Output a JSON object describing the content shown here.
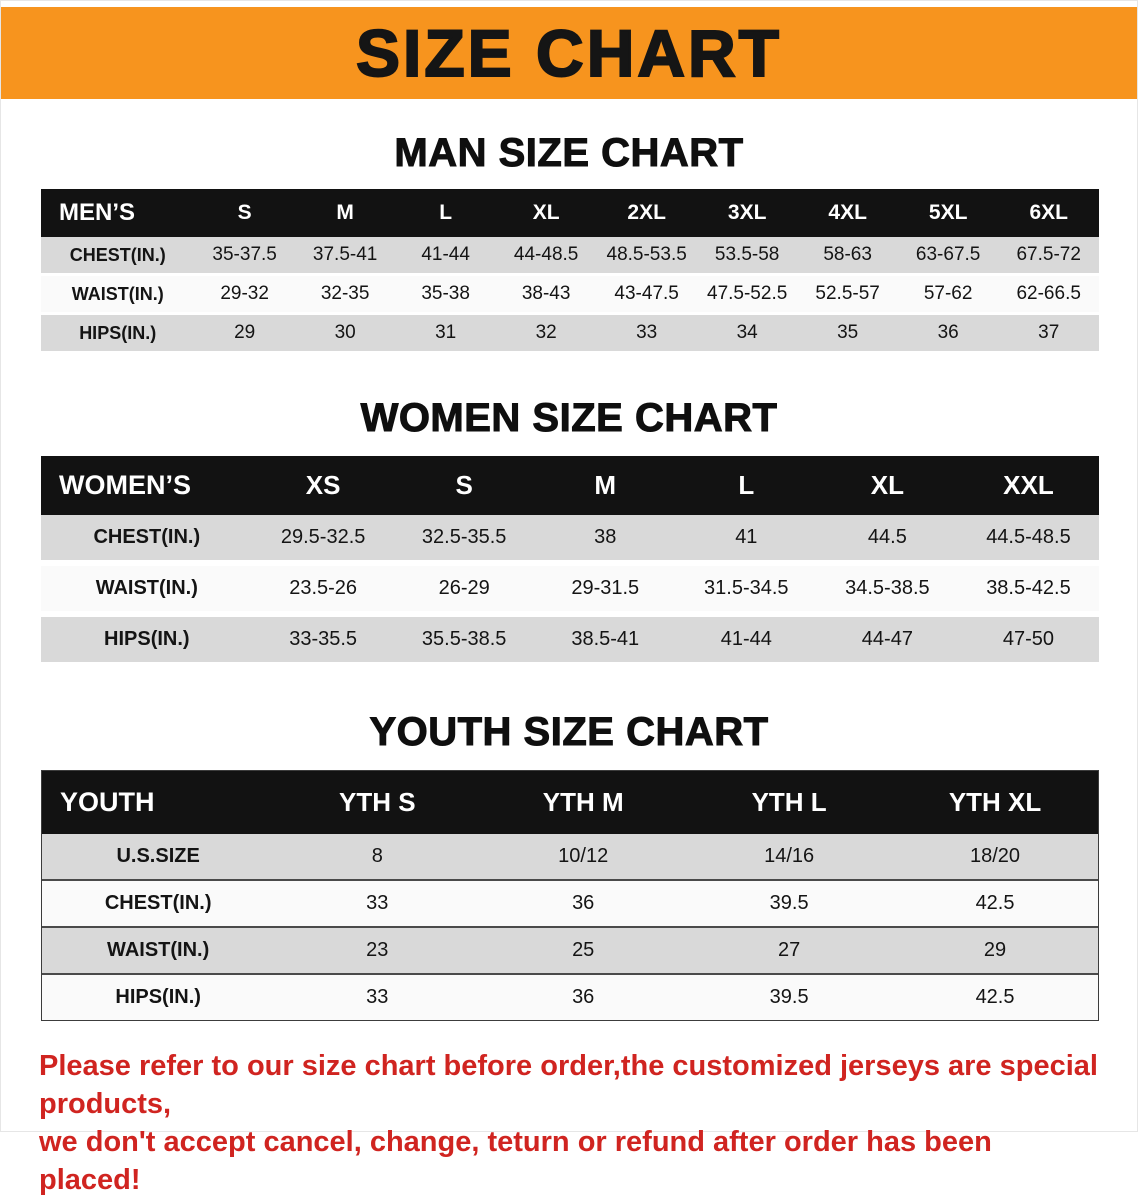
{
  "banner": {
    "title": "SIZE CHART",
    "bg_color": "#F7941E"
  },
  "sections": [
    {
      "id": "men",
      "heading": "MAN SIZE CHART",
      "table": {
        "title": "MEN’S",
        "columns": [
          "S",
          "M",
          "L",
          "XL",
          "2XL",
          "3XL",
          "4XL",
          "5XL",
          "6XL"
        ],
        "rows": [
          {
            "label": "CHEST(IN.)",
            "values": [
              "35-37.5",
              "37.5-41",
              "41-44",
              "44-48.5",
              "48.5-53.5",
              "53.5-58",
              "58-63",
              "63-67.5",
              "67.5-72"
            ]
          },
          {
            "label": "WAIST(IN.)",
            "values": [
              "29-32",
              "32-35",
              "35-38",
              "38-43",
              "43-47.5",
              "47.5-52.5",
              "52.5-57",
              "57-62",
              "62-66.5"
            ]
          },
          {
            "label": "HIPS(IN.)",
            "values": [
              "29",
              "30",
              "31",
              "32",
              "33",
              "34",
              "35",
              "36",
              "37"
            ]
          }
        ]
      }
    },
    {
      "id": "women",
      "heading": "WOMEN SIZE CHART",
      "table": {
        "title": "WOMEN’S",
        "columns": [
          "XS",
          "S",
          "M",
          "L",
          "XL",
          "XXL"
        ],
        "rows": [
          {
            "label": "CHEST(IN.)",
            "values": [
              "29.5-32.5",
              "32.5-35.5",
              "38",
              "41",
              "44.5",
              "44.5-48.5"
            ]
          },
          {
            "label": "WAIST(IN.)",
            "values": [
              "23.5-26",
              "26-29",
              "29-31.5",
              "31.5-34.5",
              "34.5-38.5",
              "38.5-42.5"
            ]
          },
          {
            "label": "HIPS(IN.)",
            "values": [
              "33-35.5",
              "35.5-38.5",
              "38.5-41",
              "41-44",
              "44-47",
              "47-50"
            ]
          }
        ]
      }
    },
    {
      "id": "youth",
      "heading": "YOUTH SIZE CHART",
      "table": {
        "title": "YOUTH",
        "columns": [
          "YTH S",
          "YTH M",
          "YTH L",
          "YTH XL"
        ],
        "rows": [
          {
            "label": "U.S.SIZE",
            "values": [
              "8",
              "10/12",
              "14/16",
              "18/20"
            ]
          },
          {
            "label": "CHEST(IN.)",
            "values": [
              "33",
              "36",
              "39.5",
              "42.5"
            ]
          },
          {
            "label": "WAIST(IN.)",
            "values": [
              "23",
              "25",
              "27",
              "29"
            ]
          },
          {
            "label": "HIPS(IN.)",
            "values": [
              "33",
              "36",
              "39.5",
              "42.5"
            ]
          }
        ]
      }
    }
  ],
  "disclaimer": {
    "lines": [
      "Please refer to our size chart before order,the customized jerseys are special products,",
      "we don't accept cancel, change, teturn or refund after order has been placed!"
    ],
    "color": "#d02420"
  },
  "colors": {
    "banner_bg": "#F7941E",
    "table_header_bg": "#121212",
    "row_gray": "#d9d9d9",
    "row_white": "#fafafa"
  }
}
